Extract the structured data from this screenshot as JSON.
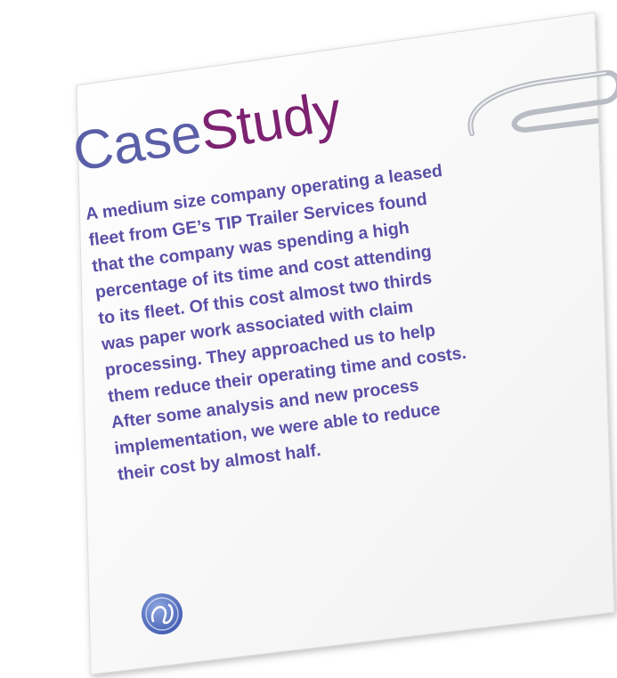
{
  "card": {
    "title_part1": "Case",
    "title_part2": "Study",
    "body_lines": [
      "A medium size company operating a leased",
      "fleet from GE’s TIP Trailer Services found",
      "that the company was spending a high",
      "percentage of its time and cost attending",
      "to its fleet. Of this cost almost two thirds",
      "was paper work associated with claim",
      "processing. They approached us to help",
      "them reduce their operating time and costs.",
      "After some analysis and new process",
      "implementation, we were able to reduce",
      "their cost by almost half."
    ]
  }
}
